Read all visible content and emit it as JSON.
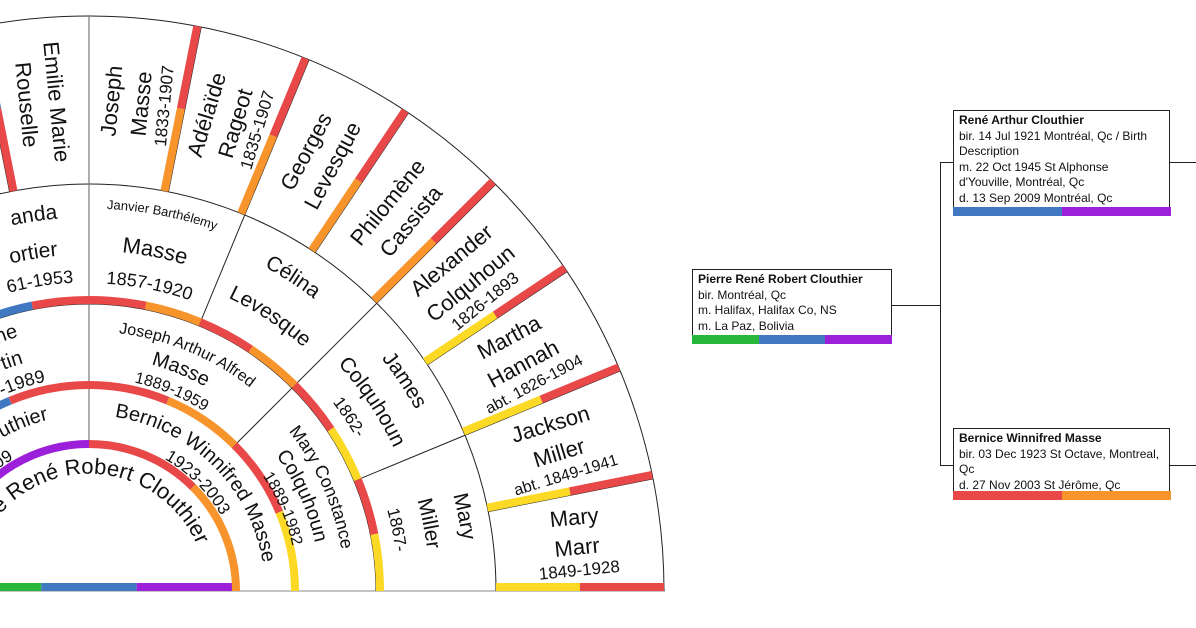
{
  "fan": {
    "people": [
      {
        "lines": [
          "Pierre René Robert Clouthier"
        ],
        "colors": [
          "#27b83b",
          "#4079c2",
          "#9c20d9"
        ]
      },
      {
        "lines": [
          "René Arthur Clouthier",
          "1921-2009"
        ],
        "colors": [
          "#4079c2",
          "#9c20d9"
        ]
      },
      {
        "lines": [
          "Bernice Winnifred Masse",
          "1923-2003"
        ],
        "colors": [
          "#e84848",
          "#f7942c"
        ]
      },
      {
        "lines": [
          "ne",
          "tin",
          "-1989"
        ],
        "colors": [
          "#4079c2",
          "#e84848"
        ]
      },
      {
        "lines": [
          "Joseph Arthur Alfred",
          "Masse",
          "1889-1959"
        ],
        "colors": [
          "#e84848",
          "#f7942c"
        ]
      },
      {
        "lines": [
          "Mary Constance",
          "Colquhoun",
          "1889-1982"
        ],
        "colors": [
          "#e84848",
          "#fbd925"
        ]
      },
      {
        "lines": [
          "anda",
          "ortier",
          "61-1953"
        ],
        "colors": [
          "#4079c2",
          "#e84848"
        ]
      },
      {
        "lines": [
          "Janvier Barthélemy",
          "Masse",
          "1857-1920"
        ],
        "colors": [
          "#e84848",
          "#f7942c"
        ]
      },
      {
        "lines": [
          "Célina",
          "Levesque"
        ],
        "colors": [
          "#e84848",
          "#f7942c"
        ]
      },
      {
        "lines": [
          "James",
          "Colquhoun",
          "1862-"
        ],
        "colors": [
          "#e84848",
          "#fbd925"
        ]
      },
      {
        "lines": [
          "Mary",
          "Miller",
          "1867-"
        ],
        "colors": [
          "#e84848",
          "#fbd925"
        ]
      },
      {
        "lines": [
          "Emilie Marie",
          "Rouselle"
        ],
        "colors": [
          "#4079c2",
          "#e84848"
        ]
      },
      {
        "lines": [
          "Joseph",
          "Masse",
          "1833-1907"
        ],
        "colors": [
          "#e84848",
          "#f7942c"
        ]
      },
      {
        "lines": [
          "Adélaïde",
          "Rageot",
          "1835-1907"
        ],
        "colors": [
          "#e84848",
          "#f7942c"
        ]
      },
      {
        "lines": [
          "Georges",
          "Levesque"
        ],
        "colors": [
          "#e84848",
          "#f7942c"
        ]
      },
      {
        "lines": [
          "Philomène",
          "Cassista"
        ],
        "colors": [
          "#e84848",
          "#f7942c"
        ]
      },
      {
        "lines": [
          "Alexander",
          "Colquhoun",
          "1826-1893"
        ],
        "colors": [
          "#e84848",
          "#fbd925"
        ]
      },
      {
        "lines": [
          "Martha",
          "Hannah",
          "abt. 1826-1904"
        ],
        "colors": [
          "#e84848",
          "#fbd925"
        ]
      },
      {
        "lines": [
          "Jackson",
          "Miller",
          "abt. 1849-1941"
        ],
        "colors": [
          "#e84848",
          "#fbd925"
        ]
      },
      {
        "lines": [
          "Mary",
          "Marr",
          "1849-1928"
        ],
        "colors": [
          "#e84848",
          "#fbd925"
        ]
      }
    ]
  },
  "pedigree": {
    "root": {
      "name": "Pierre René Robert  Clouthier",
      "lines": [
        "bir. Montréal, Qc",
        "m.  Halifax, Halifax Co, NS",
        "m.  La Paz, Bolivia"
      ],
      "colors": [
        "#27b83b",
        "#4079c2",
        "#9c20d9"
      ]
    },
    "father": {
      "name": "René Arthur  Clouthier",
      "lines": [
        "bir. 14 Jul 1921 Montréal, Qc / Birth Description",
        "m. 22 Oct 1945 St Alphonse d'Youville, Montréal, Qc",
        "d. 13 Sep 2009 Montréal, Qc"
      ],
      "colors": [
        "#4079c2",
        "#9c20d9"
      ]
    },
    "mother": {
      "name": "Bernice Winnifred  Masse",
      "lines": [
        "bir. 03 Dec 1923 St Octave, Montreal, Qc",
        "d. 27 Nov 2003 St Jérôme, Qc"
      ],
      "colors": [
        "#e84848",
        "#f7942c"
      ]
    }
  }
}
